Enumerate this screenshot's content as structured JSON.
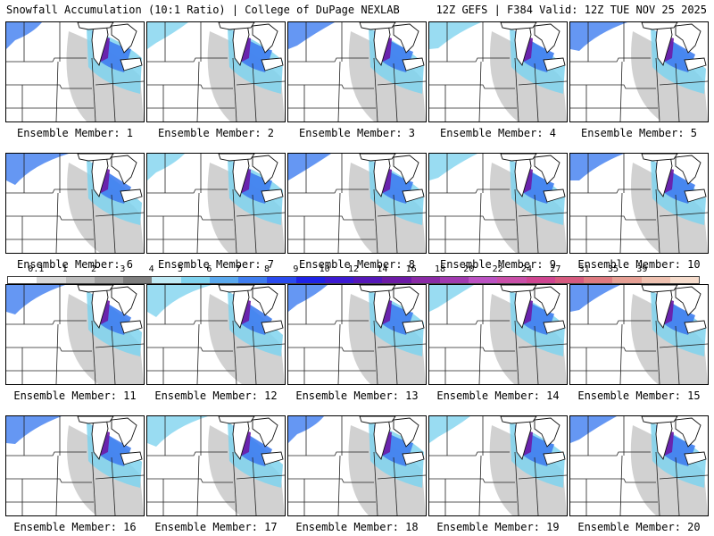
{
  "header": {
    "left": "Snowfall Accumulation (10:1 Ratio) | College of DuPage NEXLAB",
    "right": "12Z GEFS | F384 Valid: 12Z TUE NOV 25 2025"
  },
  "members": [
    {
      "label": "Ensemble Member: 1"
    },
    {
      "label": "Ensemble Member: 2"
    },
    {
      "label": "Ensemble Member: 3"
    },
    {
      "label": "Ensemble Member: 4"
    },
    {
      "label": "Ensemble Member: 5"
    },
    {
      "label": "Ensemble Member: 6"
    },
    {
      "label": "Ensemble Member: 7"
    },
    {
      "label": "Ensemble Member: 8"
    },
    {
      "label": "Ensemble Member: 9"
    },
    {
      "label": "Ensemble Member: 10"
    },
    {
      "label": "Ensemble Member: 11"
    },
    {
      "label": "Ensemble Member: 12"
    },
    {
      "label": "Ensemble Member: 13"
    },
    {
      "label": "Ensemble Member: 14"
    },
    {
      "label": "Ensemble Member: 15"
    },
    {
      "label": "Ensemble Member: 16"
    },
    {
      "label": "Ensemble Member: 17"
    },
    {
      "label": "Ensemble Member: 18"
    },
    {
      "label": "Ensemble Member: 19"
    },
    {
      "label": "Ensemble Member: 20"
    }
  ],
  "colorbar": {
    "ticks": [
      "0.1",
      "1",
      "2",
      "3",
      "4",
      "5",
      "6",
      "7",
      "8",
      "9",
      "10",
      "12",
      "14",
      "16",
      "18",
      "20",
      "22",
      "24",
      "27",
      "31",
      "35",
      "39"
    ],
    "colors": [
      "#ffffff",
      "#d9d9d9",
      "#bdbdbd",
      "#a0a0a0",
      "#7f7f7f",
      "#bfeaf5",
      "#7fd3ef",
      "#5aa9ee",
      "#3f7df0",
      "#2a4bef",
      "#1f22e6",
      "#3c1ad2",
      "#5517b8",
      "#6d1aa6",
      "#8a2aa6",
      "#a13ab0",
      "#bb52c2",
      "#c94fa8",
      "#cf4590",
      "#d65a7f",
      "#de7a80",
      "#e69f94",
      "#efc1b0",
      "#f6dccc"
    ]
  }
}
